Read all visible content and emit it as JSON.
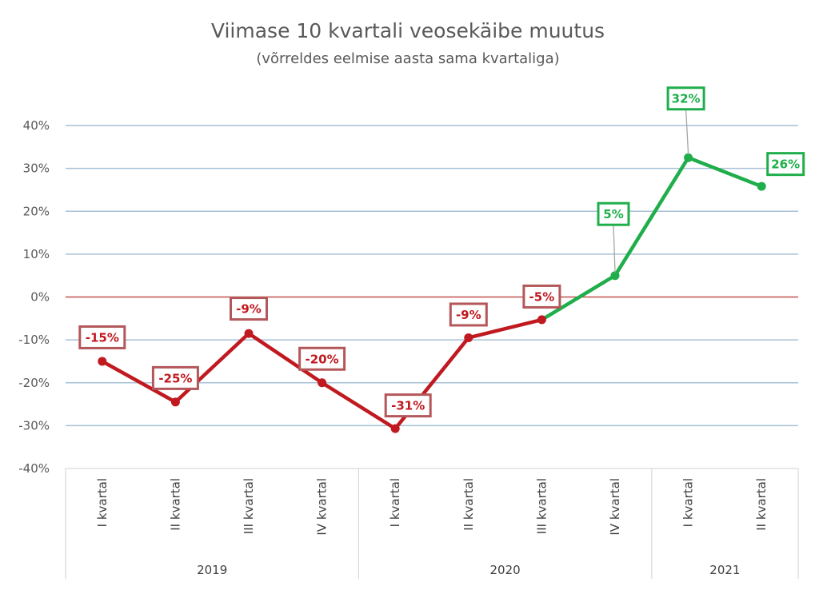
{
  "chart_data": {
    "type": "line",
    "title": "Viimase 10 kvartali veosekäibe muutus",
    "subtitle": "(võrreldes eelmise aasta sama kvartaliga)",
    "xlabel": "",
    "ylabel": "",
    "ylim": [
      -40,
      40
    ],
    "ytick_labels": [
      "40%",
      "30%",
      "20%",
      "10%",
      "0%",
      "-10%",
      "-20%",
      "-30%",
      "-40%"
    ],
    "grid": true,
    "legend": "none",
    "categories": [
      "I kvartal",
      "II kvartal",
      "III kvartal",
      "IV kvartal",
      "I kvartal",
      "II kvartal",
      "III kvartal",
      "IV kvartal",
      "I kvartal",
      "II kvartal"
    ],
    "groups": [
      {
        "label": "2019",
        "count": 4
      },
      {
        "label": "2020",
        "count": 4
      },
      {
        "label": "2021",
        "count": 2
      }
    ],
    "values": [
      -15,
      -25,
      -9,
      -20,
      -31,
      -9,
      -5,
      5,
      32,
      26
    ],
    "plot_values": [
      -15,
      -24.5,
      -8.5,
      -20,
      -30.7,
      -9.5,
      -5.3,
      5,
      32.5,
      25.8
    ],
    "data_labels": [
      "-15%",
      "-25%",
      "-9%",
      "-20%",
      "-31%",
      "-9%",
      "-5%",
      "5%",
      "32%",
      "26%"
    ],
    "colors": {
      "negative": "#c0191f",
      "positive": "#1fae4b",
      "negative_label_border": "#b4575a",
      "zero_line": "#c0504d",
      "grid": "#a8c1d6",
      "axis": "#d9d9d9"
    }
  }
}
